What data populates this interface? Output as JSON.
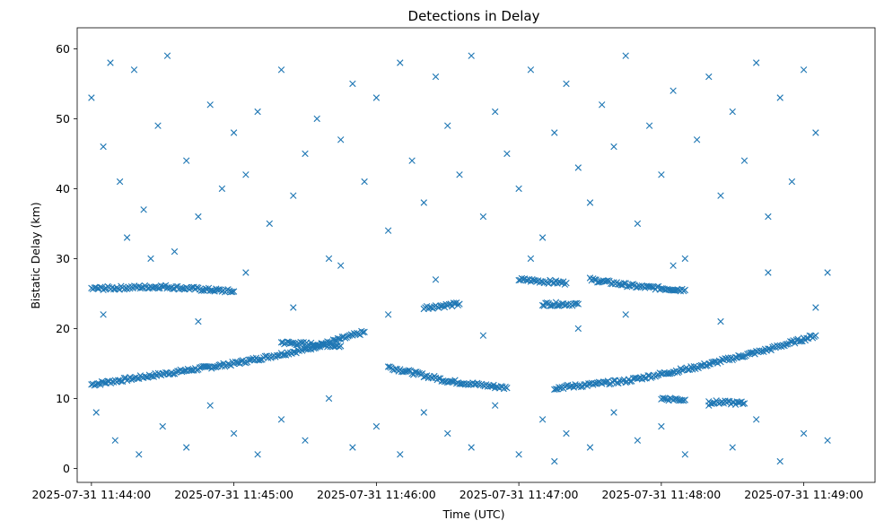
{
  "chart_data": {
    "type": "scatter",
    "title": "Detections in Delay",
    "xlabel": "Time (UTC)",
    "ylabel": "Bistatic Delay (km)",
    "x_unit": "time",
    "xlim": [
      "2025-07-31 11:43:54",
      "2025-07-31 11:49:30"
    ],
    "ylim": [
      -2,
      63
    ],
    "x_ticks": [
      "2025-07-31 11:44:00",
      "2025-07-31 11:45:00",
      "2025-07-31 11:46:00",
      "2025-07-31 11:47:00",
      "2025-07-31 11:48:00",
      "2025-07-31 11:49:00"
    ],
    "y_ticks": [
      0,
      10,
      20,
      30,
      40,
      50,
      60
    ],
    "marker": "x",
    "color": "#1f77b4",
    "grid": false,
    "legend": "none",
    "series": [
      {
        "kind": "track",
        "points": [
          [
            "2025-07-31 11:44:00",
            12.0
          ],
          [
            "2025-07-31 11:44:30",
            13.5
          ],
          [
            "2025-07-31 11:45:00",
            15.0
          ],
          [
            "2025-07-31 11:45:30",
            17.0
          ],
          [
            "2025-07-31 11:45:55",
            19.5
          ]
        ]
      },
      {
        "kind": "track",
        "points": [
          [
            "2025-07-31 11:44:00",
            25.7
          ],
          [
            "2025-07-31 11:44:30",
            26.0
          ],
          [
            "2025-07-31 11:45:00",
            25.3
          ]
        ]
      },
      {
        "kind": "track",
        "points": [
          [
            "2025-07-31 11:45:20",
            18.0
          ],
          [
            "2025-07-31 11:45:45",
            17.5
          ]
        ]
      },
      {
        "kind": "track",
        "points": [
          [
            "2025-07-31 11:46:05",
            14.5
          ],
          [
            "2025-07-31 11:46:30",
            12.5
          ],
          [
            "2025-07-31 11:46:55",
            11.5
          ]
        ]
      },
      {
        "kind": "track",
        "points": [
          [
            "2025-07-31 11:46:20",
            23.0
          ],
          [
            "2025-07-31 11:46:35",
            23.5
          ]
        ]
      },
      {
        "kind": "track",
        "points": [
          [
            "2025-07-31 11:47:00",
            27.0
          ],
          [
            "2025-07-31 11:47:20",
            26.5
          ]
        ]
      },
      {
        "kind": "track",
        "points": [
          [
            "2025-07-31 11:47:10",
            23.5
          ],
          [
            "2025-07-31 11:47:25",
            23.5
          ]
        ]
      },
      {
        "kind": "track",
        "points": [
          [
            "2025-07-31 11:47:30",
            27.0
          ],
          [
            "2025-07-31 11:47:50",
            26.0
          ],
          [
            "2025-07-31 11:48:10",
            25.5
          ]
        ]
      },
      {
        "kind": "track",
        "points": [
          [
            "2025-07-31 11:47:15",
            11.5
          ],
          [
            "2025-07-31 11:47:45",
            12.5
          ],
          [
            "2025-07-31 11:48:15",
            14.5
          ],
          [
            "2025-07-31 11:48:45",
            17.0
          ],
          [
            "2025-07-31 11:49:05",
            19.0
          ]
        ]
      },
      {
        "kind": "track",
        "points": [
          [
            "2025-07-31 11:48:00",
            10.0
          ],
          [
            "2025-07-31 11:48:10",
            9.8
          ]
        ]
      },
      {
        "kind": "track",
        "points": [
          [
            "2025-07-31 11:48:20",
            9.5
          ],
          [
            "2025-07-31 11:48:35",
            9.3
          ]
        ]
      },
      {
        "kind": "noise",
        "points": [
          [
            "2025-07-31 11:44:00",
            53
          ],
          [
            "2025-07-31 11:44:05",
            46
          ],
          [
            "2025-07-31 11:44:08",
            58
          ],
          [
            "2025-07-31 11:44:12",
            41
          ],
          [
            "2025-07-31 11:44:15",
            33
          ],
          [
            "2025-07-31 11:44:18",
            57
          ],
          [
            "2025-07-31 11:44:22",
            37
          ],
          [
            "2025-07-31 11:44:28",
            49
          ],
          [
            "2025-07-31 11:44:32",
            59
          ],
          [
            "2025-07-31 11:44:35",
            31
          ],
          [
            "2025-07-31 11:44:40",
            44
          ],
          [
            "2025-07-31 11:44:45",
            36
          ],
          [
            "2025-07-31 11:44:50",
            52
          ],
          [
            "2025-07-31 11:44:55",
            40
          ],
          [
            "2025-07-31 11:45:00",
            48
          ],
          [
            "2025-07-31 11:45:05",
            42
          ],
          [
            "2025-07-31 11:45:10",
            51
          ],
          [
            "2025-07-31 11:45:15",
            35
          ],
          [
            "2025-07-31 11:45:20",
            57
          ],
          [
            "2025-07-31 11:45:25",
            39
          ],
          [
            "2025-07-31 11:45:30",
            45
          ],
          [
            "2025-07-31 11:45:35",
            50
          ],
          [
            "2025-07-31 11:45:40",
            30
          ],
          [
            "2025-07-31 11:45:45",
            47
          ],
          [
            "2025-07-31 11:45:50",
            55
          ],
          [
            "2025-07-31 11:45:55",
            41
          ],
          [
            "2025-07-31 11:46:00",
            53
          ],
          [
            "2025-07-31 11:46:05",
            34
          ],
          [
            "2025-07-31 11:46:10",
            58
          ],
          [
            "2025-07-31 11:46:15",
            44
          ],
          [
            "2025-07-31 11:46:20",
            38
          ],
          [
            "2025-07-31 11:46:25",
            56
          ],
          [
            "2025-07-31 11:46:30",
            49
          ],
          [
            "2025-07-31 11:46:35",
            42
          ],
          [
            "2025-07-31 11:46:40",
            59
          ],
          [
            "2025-07-31 11:46:45",
            36
          ],
          [
            "2025-07-31 11:46:50",
            51
          ],
          [
            "2025-07-31 11:46:55",
            45
          ],
          [
            "2025-07-31 11:47:00",
            40
          ],
          [
            "2025-07-31 11:47:05",
            57
          ],
          [
            "2025-07-31 11:47:10",
            33
          ],
          [
            "2025-07-31 11:47:15",
            48
          ],
          [
            "2025-07-31 11:47:20",
            55
          ],
          [
            "2025-07-31 11:47:25",
            43
          ],
          [
            "2025-07-31 11:47:30",
            38
          ],
          [
            "2025-07-31 11:47:35",
            52
          ],
          [
            "2025-07-31 11:47:40",
            46
          ],
          [
            "2025-07-31 11:47:45",
            59
          ],
          [
            "2025-07-31 11:47:50",
            35
          ],
          [
            "2025-07-31 11:47:55",
            49
          ],
          [
            "2025-07-31 11:48:00",
            42
          ],
          [
            "2025-07-31 11:48:05",
            54
          ],
          [
            "2025-07-31 11:48:10",
            30
          ],
          [
            "2025-07-31 11:48:15",
            47
          ],
          [
            "2025-07-31 11:48:20",
            56
          ],
          [
            "2025-07-31 11:48:25",
            39
          ],
          [
            "2025-07-31 11:48:30",
            51
          ],
          [
            "2025-07-31 11:48:35",
            44
          ],
          [
            "2025-07-31 11:48:40",
            58
          ],
          [
            "2025-07-31 11:48:45",
            36
          ],
          [
            "2025-07-31 11:48:50",
            53
          ],
          [
            "2025-07-31 11:48:55",
            41
          ],
          [
            "2025-07-31 11:49:00",
            57
          ],
          [
            "2025-07-31 11:49:05",
            48
          ],
          [
            "2025-07-31 11:49:10",
            28
          ],
          [
            "2025-07-31 11:44:02",
            8
          ],
          [
            "2025-07-31 11:44:10",
            4
          ],
          [
            "2025-07-31 11:44:20",
            2
          ],
          [
            "2025-07-31 11:44:30",
            6
          ],
          [
            "2025-07-31 11:44:40",
            3
          ],
          [
            "2025-07-31 11:44:50",
            9
          ],
          [
            "2025-07-31 11:45:00",
            5
          ],
          [
            "2025-07-31 11:45:10",
            2
          ],
          [
            "2025-07-31 11:45:20",
            7
          ],
          [
            "2025-07-31 11:45:30",
            4
          ],
          [
            "2025-07-31 11:45:40",
            10
          ],
          [
            "2025-07-31 11:45:50",
            3
          ],
          [
            "2025-07-31 11:46:00",
            6
          ],
          [
            "2025-07-31 11:46:10",
            2
          ],
          [
            "2025-07-31 11:46:20",
            8
          ],
          [
            "2025-07-31 11:46:30",
            5
          ],
          [
            "2025-07-31 11:46:40",
            3
          ],
          [
            "2025-07-31 11:46:50",
            9
          ],
          [
            "2025-07-31 11:47:00",
            2
          ],
          [
            "2025-07-31 11:47:10",
            7
          ],
          [
            "2025-07-31 11:47:15",
            1
          ],
          [
            "2025-07-31 11:47:20",
            5
          ],
          [
            "2025-07-31 11:47:30",
            3
          ],
          [
            "2025-07-31 11:47:40",
            8
          ],
          [
            "2025-07-31 11:47:50",
            4
          ],
          [
            "2025-07-31 11:48:00",
            6
          ],
          [
            "2025-07-31 11:48:10",
            2
          ],
          [
            "2025-07-31 11:48:20",
            9
          ],
          [
            "2025-07-31 11:48:30",
            3
          ],
          [
            "2025-07-31 11:48:40",
            7
          ],
          [
            "2025-07-31 11:48:50",
            1
          ],
          [
            "2025-07-31 11:49:00",
            5
          ],
          [
            "2025-07-31 11:49:10",
            4
          ],
          [
            "2025-07-31 11:44:05",
            22
          ],
          [
            "2025-07-31 11:44:25",
            30
          ],
          [
            "2025-07-31 11:44:45",
            21
          ],
          [
            "2025-07-31 11:45:05",
            28
          ],
          [
            "2025-07-31 11:45:25",
            23
          ],
          [
            "2025-07-31 11:45:45",
            29
          ],
          [
            "2025-07-31 11:46:05",
            22
          ],
          [
            "2025-07-31 11:46:25",
            27
          ],
          [
            "2025-07-31 11:46:45",
            19
          ],
          [
            "2025-07-31 11:47:05",
            30
          ],
          [
            "2025-07-31 11:47:25",
            20
          ],
          [
            "2025-07-31 11:47:45",
            22
          ],
          [
            "2025-07-31 11:48:05",
            29
          ],
          [
            "2025-07-31 11:48:25",
            21
          ],
          [
            "2025-07-31 11:48:45",
            28
          ],
          [
            "2025-07-31 11:49:05",
            23
          ]
        ]
      }
    ]
  }
}
